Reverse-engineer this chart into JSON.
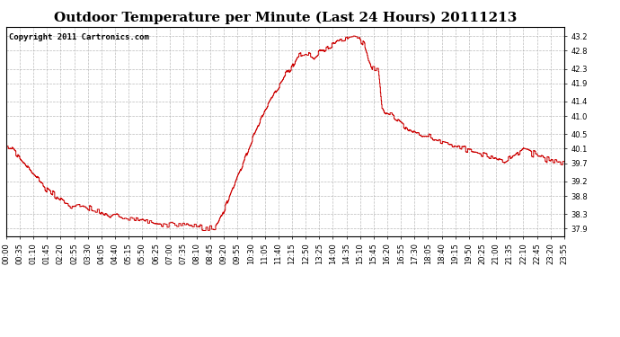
{
  "title": "Outdoor Temperature per Minute (Last 24 Hours) 20111213",
  "copyright_text": "Copyright 2011 Cartronics.com",
  "line_color": "#cc0000",
  "background_color": "#ffffff",
  "plot_bg_color": "#ffffff",
  "grid_color": "#aaaaaa",
  "ylim": [
    37.7,
    43.45
  ],
  "yticks": [
    37.9,
    38.3,
    38.8,
    39.2,
    39.7,
    40.1,
    40.5,
    41.0,
    41.4,
    41.9,
    42.3,
    42.8,
    43.2
  ],
  "xtick_labels": [
    "00:00",
    "00:35",
    "01:10",
    "01:45",
    "02:20",
    "02:55",
    "03:30",
    "04:05",
    "04:40",
    "05:15",
    "05:50",
    "06:25",
    "07:00",
    "07:35",
    "08:10",
    "08:45",
    "09:20",
    "09:55",
    "10:30",
    "11:05",
    "11:40",
    "12:15",
    "12:50",
    "13:25",
    "14:00",
    "14:35",
    "15:10",
    "15:45",
    "16:20",
    "16:55",
    "17:30",
    "18:05",
    "18:40",
    "19:15",
    "19:50",
    "20:25",
    "21:00",
    "21:35",
    "22:10",
    "22:45",
    "23:20",
    "23:55"
  ],
  "title_fontsize": 11,
  "copyright_fontsize": 6.5,
  "tick_fontsize": 6,
  "key_times": [
    0,
    0.08,
    0.25,
    0.5,
    0.75,
    1.0,
    1.3,
    1.6,
    1.9,
    2.2,
    2.5,
    2.75,
    3.0,
    3.4,
    3.6,
    3.75,
    4.0,
    4.1,
    4.25,
    4.5,
    4.75,
    5.0,
    5.25,
    5.5,
    5.75,
    6.0,
    6.25,
    6.5,
    6.75,
    7.0,
    7.25,
    7.5,
    7.75,
    8.0,
    8.25,
    8.5,
    8.75,
    9.0,
    9.1,
    9.25,
    9.5,
    9.75,
    10.0,
    10.25,
    10.5,
    10.75,
    11.0,
    11.25,
    11.5,
    11.75,
    12.0,
    12.25,
    12.5,
    12.6,
    12.75,
    13.0,
    13.17,
    13.25,
    13.5,
    13.75,
    14.0,
    14.17,
    14.25,
    14.5,
    14.67,
    14.75,
    15.0,
    15.17,
    15.25,
    15.4,
    15.5,
    15.6,
    15.75,
    16.0,
    16.17,
    16.25,
    16.35,
    16.5,
    16.6,
    16.75,
    17.0,
    17.25,
    17.5,
    17.75,
    18.0,
    18.25,
    18.5,
    18.75,
    19.0,
    19.25,
    19.5,
    19.75,
    20.0,
    20.25,
    20.5,
    20.75,
    21.0,
    21.17,
    21.25,
    21.4,
    21.5,
    21.6,
    21.75,
    22.0,
    22.17,
    22.25,
    22.4,
    22.5,
    22.6,
    22.75,
    23.0,
    23.17,
    23.25,
    23.5,
    23.75,
    23.92
  ],
  "key_temps": [
    40.1,
    40.1,
    40.05,
    39.9,
    39.7,
    39.5,
    39.3,
    39.1,
    38.9,
    38.75,
    38.6,
    38.55,
    38.5,
    38.55,
    38.45,
    38.4,
    38.4,
    38.35,
    38.3,
    38.25,
    38.3,
    38.2,
    38.2,
    38.2,
    38.15,
    38.1,
    38.1,
    38.05,
    38.0,
    38.0,
    38.0,
    38.0,
    38.0,
    37.95,
    37.95,
    37.9,
    37.9,
    37.9,
    38.0,
    38.2,
    38.6,
    39.0,
    39.4,
    39.8,
    40.2,
    40.6,
    41.0,
    41.3,
    41.6,
    41.85,
    42.1,
    42.3,
    42.6,
    42.65,
    42.7,
    42.7,
    42.65,
    42.6,
    42.75,
    42.85,
    42.95,
    43.0,
    43.05,
    43.1,
    43.15,
    43.2,
    43.2,
    43.2,
    43.1,
    43.0,
    42.8,
    42.5,
    42.3,
    42.3,
    41.2,
    41.1,
    41.05,
    41.0,
    41.0,
    40.9,
    40.8,
    40.65,
    40.55,
    40.5,
    40.45,
    40.4,
    40.35,
    40.3,
    40.25,
    40.2,
    40.15,
    40.1,
    40.05,
    40.0,
    39.95,
    39.9,
    39.85,
    39.8,
    39.78,
    39.75,
    39.8,
    39.85,
    39.9,
    40.0,
    40.05,
    40.1,
    40.1,
    40.05,
    40.0,
    39.95,
    39.9,
    39.85,
    39.8,
    39.75,
    39.72,
    39.7
  ]
}
